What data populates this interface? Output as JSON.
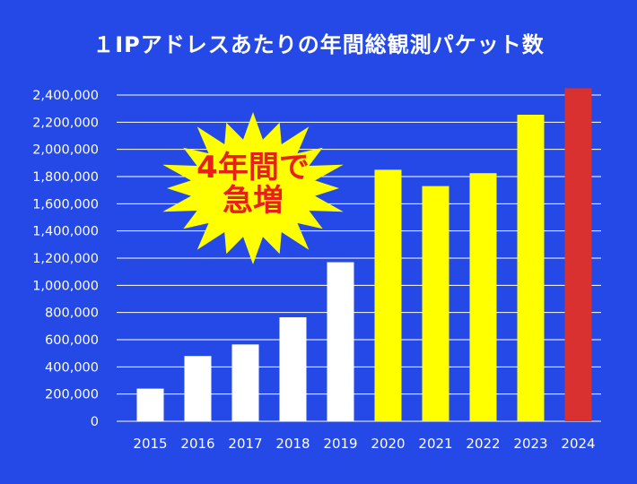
{
  "chart_data": {
    "type": "bar",
    "title": "１IPアドレスあたりの年間総観測パケット数",
    "xlabel": "",
    "ylabel": "",
    "categories": [
      "2015",
      "2016",
      "2017",
      "2018",
      "2019",
      "2020",
      "2021",
      "2022",
      "2023",
      "2024"
    ],
    "values": [
      240000,
      480000,
      565000,
      765000,
      1170000,
      1850000,
      1730000,
      1825000,
      2255000,
      2450000
    ],
    "bar_colors": [
      "#ffffff",
      "#ffffff",
      "#ffffff",
      "#ffffff",
      "#ffffff",
      "#ffff00",
      "#ffff00",
      "#ffff00",
      "#ffff00",
      "#d93030"
    ],
    "ylim": [
      0,
      2400000
    ],
    "yticks": [
      0,
      200000,
      400000,
      600000,
      800000,
      1000000,
      1200000,
      1400000,
      1600000,
      1800000,
      2000000,
      2200000,
      2400000
    ],
    "ytick_labels": [
      "0",
      "200,000",
      "400,000",
      "600,000",
      "800,000",
      "1,000,000",
      "1,200,000",
      "1,400,000",
      "1,600,000",
      "1,800,000",
      "2,000,000",
      "2,200,000",
      "2,400,000"
    ],
    "grid": true,
    "annotation": {
      "lines": [
        "4年間で",
        "急増"
      ],
      "style": "starburst",
      "fill": "#ffff00",
      "text_color": "#e8201a"
    }
  },
  "colors": {
    "background": "#2549e6",
    "gridline": "#ffffff",
    "text": "#ffffff"
  }
}
